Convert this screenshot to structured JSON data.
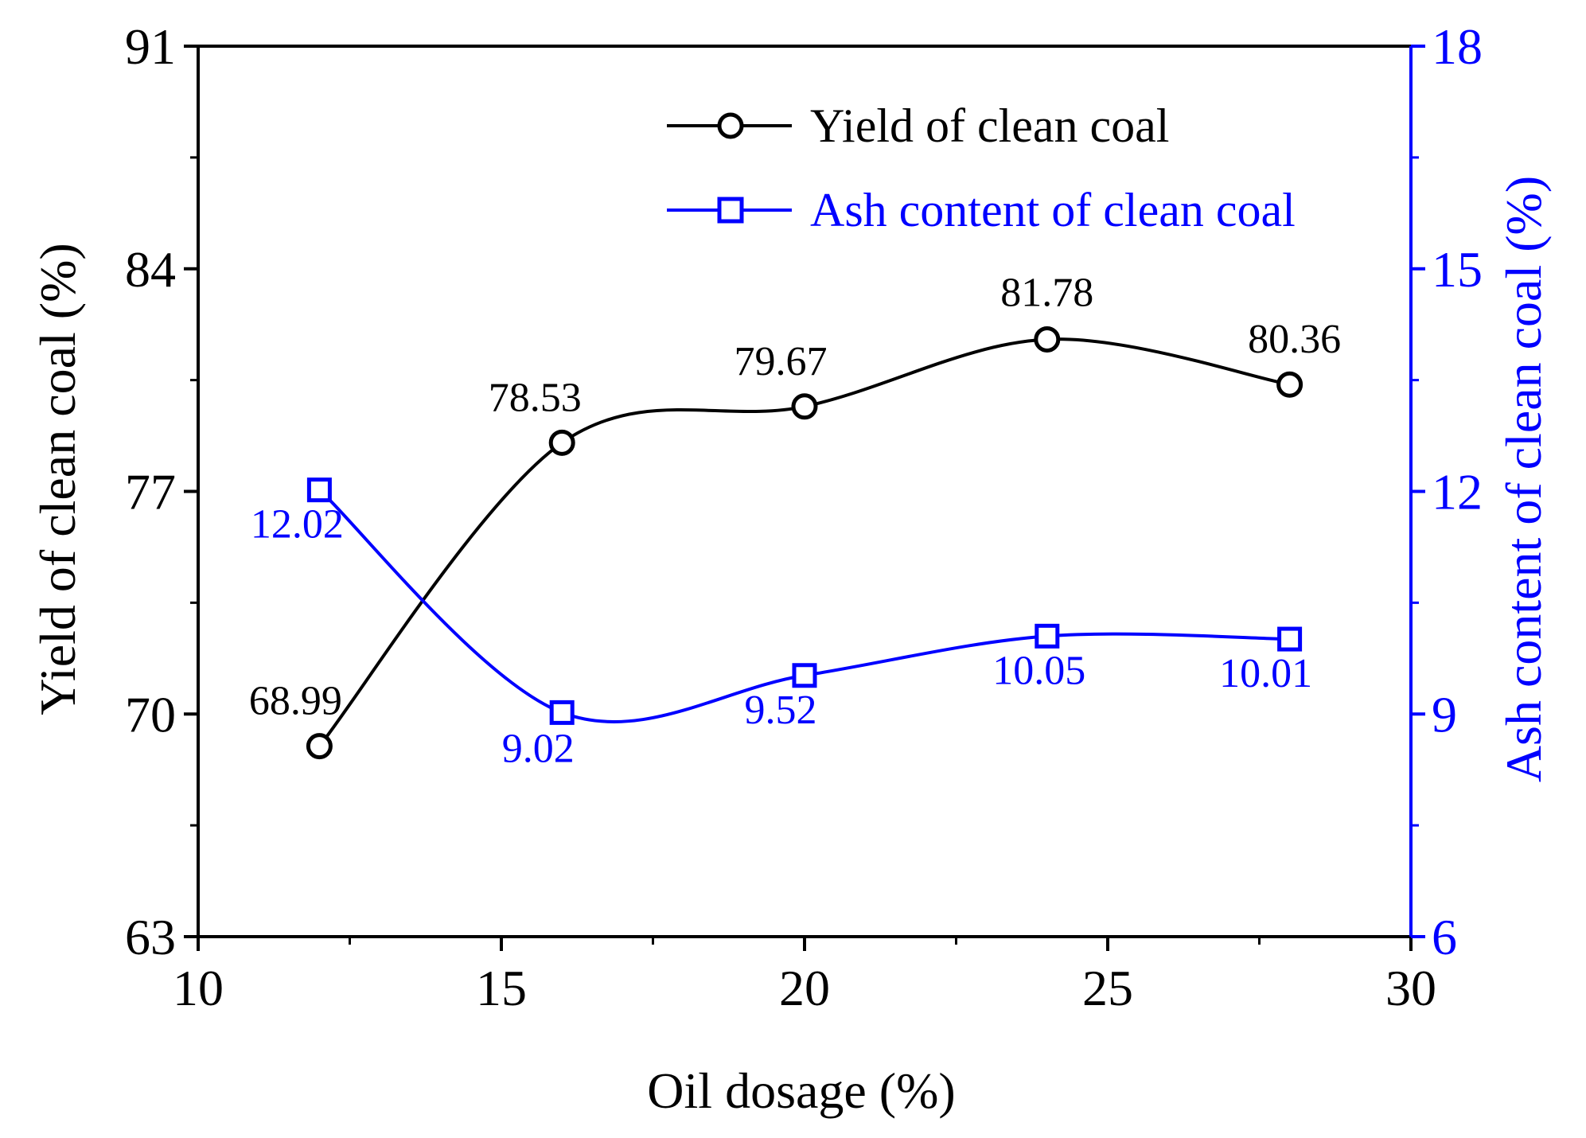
{
  "chart_data": {
    "type": "line",
    "xlabel": "Oil dosage (%)",
    "ylabel_left": "Yield of clean coal (%)",
    "ylabel_right": "Ash content of clean coal (%)",
    "xlim": [
      10,
      30
    ],
    "xticks": [
      10,
      15,
      20,
      25,
      30
    ],
    "ylim_left": [
      63,
      91
    ],
    "yticks_left": [
      63,
      70,
      77,
      84,
      91
    ],
    "ylim_right": [
      6,
      18
    ],
    "yticks_right": [
      6,
      9,
      12,
      15,
      18
    ],
    "x": [
      12,
      16,
      20,
      24,
      28
    ],
    "series": [
      {
        "name": "Yield of clean coal",
        "axis": "left",
        "marker": "circle",
        "color": "#000000",
        "values": [
          68.99,
          78.53,
          79.67,
          81.78,
          80.36
        ],
        "labels": [
          "68.99",
          "78.53",
          "79.67",
          "81.78",
          "80.36"
        ]
      },
      {
        "name": "Ash content of clean coal",
        "axis": "right",
        "marker": "square",
        "color": "#0000ff",
        "values": [
          12.02,
          9.02,
          9.52,
          10.05,
          10.01
        ],
        "labels": [
          "12.02",
          "9.02",
          "9.52",
          "10.05",
          "10.01"
        ]
      }
    ],
    "legend": "top-right"
  },
  "colors": {
    "axis_left": "#000000",
    "axis_right": "#0000ff"
  }
}
